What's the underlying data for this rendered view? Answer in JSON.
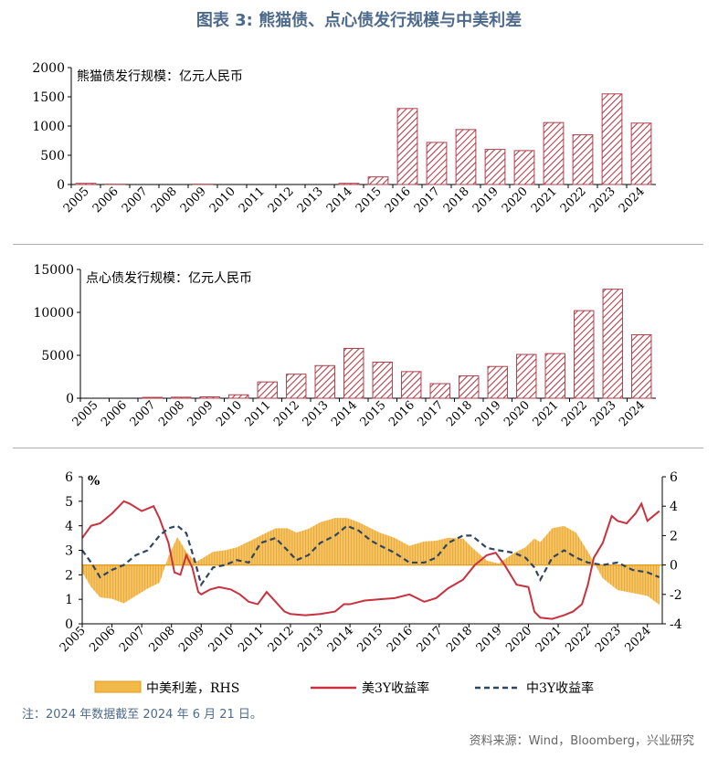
{
  "page": {
    "title": "图表 3: 熊猫债、点心债发行规模与中美利差",
    "note": "注：2024 年数据截至 2024 年 6 月 21 日。",
    "source": "资料来源：Wind，Bloomberg，兴业研究"
  },
  "colors": {
    "bar_hatch": "#b0404a",
    "us_line": "#c8323e",
    "cn_line": "#2f4560",
    "spread_fill": "#f2b84a",
    "spread_edge": "#e59a1a",
    "title": "#4d6a8c"
  },
  "chart_data": [
    {
      "type": "bar",
      "label": "熊猫债发行规模：亿元人民币",
      "categories": [
        "2005",
        "2006",
        "2007",
        "2008",
        "2009",
        "2010",
        "2011",
        "2012",
        "2013",
        "2014",
        "2015",
        "2016",
        "2017",
        "2018",
        "2019",
        "2020",
        "2021",
        "2022",
        "2023",
        "2024"
      ],
      "values": [
        20,
        5,
        0,
        0,
        5,
        0,
        0,
        0,
        0,
        20,
        130,
        1300,
        720,
        940,
        600,
        580,
        1060,
        850,
        1550,
        1050
      ],
      "ylim": [
        0,
        2000
      ],
      "yticks": [
        "0",
        "500",
        "1000",
        "1500",
        "2000"
      ]
    },
    {
      "type": "bar",
      "label": "点心债发行规模：亿元人民币",
      "categories": [
        "2005",
        "2006",
        "2007",
        "2008",
        "2009",
        "2010",
        "2011",
        "2012",
        "2013",
        "2014",
        "2015",
        "2016",
        "2017",
        "2018",
        "2019",
        "2020",
        "2021",
        "2022",
        "2023",
        "2024"
      ],
      "values": [
        0,
        0,
        100,
        120,
        160,
        400,
        1900,
        2800,
        3800,
        5800,
        4200,
        3100,
        1700,
        2600,
        3700,
        5100,
        5200,
        10200,
        12700,
        7400
      ],
      "ylim": [
        0,
        15000
      ],
      "yticks": [
        "0",
        "5000",
        "10000",
        "15000"
      ]
    },
    {
      "type": "line",
      "unit_label": "%",
      "x_range": [
        2005,
        2024.5
      ],
      "x_ticks": [
        "2005",
        "2006",
        "2007",
        "2008",
        "2009",
        "2010",
        "2011",
        "2012",
        "2013",
        "2014",
        "2015",
        "2016",
        "2017",
        "2018",
        "2019",
        "2020",
        "2021",
        "2022",
        "2023",
        "2024"
      ],
      "left_axis": {
        "ylim": [
          0,
          6
        ],
        "ticks": [
          "0",
          "1",
          "2",
          "3",
          "4",
          "5",
          "6"
        ]
      },
      "right_axis": {
        "ylim": [
          -4,
          6
        ],
        "ticks": [
          "-4",
          "-2",
          "0",
          "2",
          "4",
          "6"
        ]
      },
      "legend": [
        "中美利差，RHS",
        "美3Y收益率",
        "中3Y收益率"
      ],
      "series": [
        {
          "name": "美3Y收益率",
          "axis": "left",
          "x": [
            2005.0,
            2005.3,
            2005.6,
            2006.0,
            2006.4,
            2006.6,
            2007.0,
            2007.4,
            2007.6,
            2007.9,
            2008.1,
            2008.3,
            2008.5,
            2008.7,
            2008.9,
            2009.0,
            2009.3,
            2009.6,
            2010.0,
            2010.3,
            2010.6,
            2010.9,
            2011.2,
            2011.5,
            2011.8,
            2012.0,
            2012.5,
            2013.0,
            2013.5,
            2013.8,
            2014.0,
            2014.5,
            2015.0,
            2015.5,
            2016.0,
            2016.5,
            2016.9,
            2017.3,
            2017.8,
            2018.2,
            2018.6,
            2018.9,
            2019.2,
            2019.6,
            2020.0,
            2020.2,
            2020.4,
            2020.8,
            2021.2,
            2021.5,
            2021.8,
            2022.0,
            2022.2,
            2022.5,
            2022.8,
            2023.0,
            2023.3,
            2023.6,
            2023.8,
            2024.0,
            2024.2,
            2024.4
          ],
          "values": [
            3.5,
            4.0,
            4.1,
            4.5,
            5.0,
            4.9,
            4.6,
            4.8,
            4.3,
            3.3,
            2.1,
            2.0,
            2.8,
            2.3,
            1.3,
            1.2,
            1.4,
            1.5,
            1.4,
            1.2,
            0.9,
            0.8,
            1.3,
            0.9,
            0.5,
            0.4,
            0.35,
            0.4,
            0.5,
            0.8,
            0.8,
            0.95,
            1.0,
            1.05,
            1.2,
            0.9,
            1.05,
            1.45,
            1.8,
            2.4,
            2.8,
            2.9,
            2.4,
            1.6,
            1.5,
            0.5,
            0.25,
            0.2,
            0.35,
            0.5,
            0.8,
            1.6,
            2.7,
            3.3,
            4.4,
            4.2,
            4.1,
            4.5,
            4.9,
            4.2,
            4.4,
            4.6
          ]
        },
        {
          "name": "中3Y收益率",
          "axis": "left",
          "x": [
            2005.0,
            2005.3,
            2005.6,
            2006.0,
            2006.4,
            2006.8,
            2007.2,
            2007.6,
            2007.9,
            2008.2,
            2008.5,
            2008.8,
            2009.0,
            2009.4,
            2009.8,
            2010.2,
            2010.6,
            2011.0,
            2011.5,
            2011.9,
            2012.2,
            2012.6,
            2013.0,
            2013.5,
            2013.9,
            2014.3,
            2014.7,
            2015.0,
            2015.5,
            2016.0,
            2016.5,
            2016.9,
            2017.3,
            2017.8,
            2018.1,
            2018.6,
            2019.0,
            2019.5,
            2019.9,
            2020.2,
            2020.4,
            2020.8,
            2021.2,
            2021.6,
            2022.0,
            2022.5,
            2023.0,
            2023.5,
            2024.0,
            2024.4
          ],
          "values": [
            3.0,
            2.5,
            1.9,
            2.2,
            2.4,
            2.8,
            3.0,
            3.6,
            3.9,
            4.0,
            3.7,
            2.5,
            1.6,
            2.3,
            2.4,
            2.6,
            2.5,
            3.3,
            3.5,
            3.0,
            2.6,
            2.8,
            3.3,
            3.6,
            4.0,
            3.8,
            3.4,
            3.2,
            2.9,
            2.5,
            2.5,
            2.7,
            3.3,
            3.6,
            3.6,
            3.1,
            3.0,
            2.9,
            2.7,
            2.3,
            1.8,
            2.7,
            3.0,
            2.7,
            2.5,
            2.4,
            2.5,
            2.2,
            2.1,
            1.9
          ]
        },
        {
          "name": "中美利差，RHS",
          "axis": "right",
          "type": "area",
          "x": [
            2005.0,
            2005.3,
            2005.6,
            2006.0,
            2006.4,
            2006.8,
            2007.2,
            2007.6,
            2007.9,
            2008.2,
            2008.5,
            2008.8,
            2009.0,
            2009.4,
            2009.8,
            2010.2,
            2010.6,
            2011.0,
            2011.5,
            2011.9,
            2012.2,
            2012.6,
            2013.0,
            2013.5,
            2013.9,
            2014.3,
            2014.7,
            2015.0,
            2015.5,
            2016.0,
            2016.5,
            2016.9,
            2017.3,
            2017.8,
            2018.1,
            2018.6,
            2019.0,
            2019.5,
            2019.9,
            2020.2,
            2020.4,
            2020.8,
            2021.2,
            2021.6,
            2022.0,
            2022.5,
            2023.0,
            2023.5,
            2024.0,
            2024.4
          ],
          "values": [
            -0.5,
            -1.5,
            -2.2,
            -2.3,
            -2.6,
            -2.1,
            -1.6,
            -1.2,
            0.6,
            1.9,
            0.9,
            0.2,
            0.4,
            0.9,
            1.0,
            1.2,
            1.6,
            2.0,
            2.5,
            2.5,
            2.2,
            2.45,
            2.9,
            3.2,
            3.2,
            2.9,
            2.5,
            2.2,
            1.85,
            1.3,
            1.6,
            1.65,
            1.85,
            1.8,
            1.2,
            0.3,
            0.1,
            0.8,
            1.2,
            1.8,
            1.55,
            2.5,
            2.65,
            2.2,
            0.9,
            -0.9,
            -1.7,
            -1.9,
            -2.1,
            -2.7
          ]
        }
      ]
    }
  ]
}
